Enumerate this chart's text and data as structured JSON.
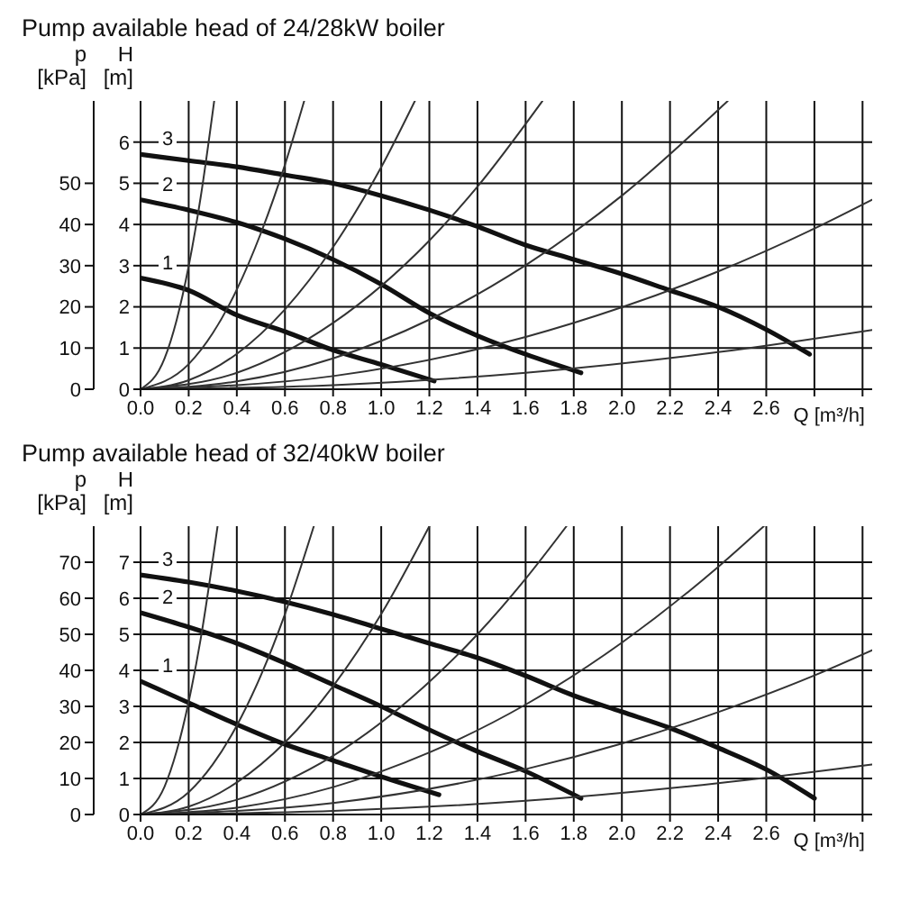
{
  "chart_data": [
    {
      "type": "line",
      "title": "Pump available head of 24/28kW boiler",
      "xlabel": "Q [m³/h]",
      "ylabel": "H [m]",
      "y2label": "p [kPa]",
      "xlim": [
        0,
        3.04
      ],
      "xticks": [
        {
          "value": 0,
          "label": "0.0"
        },
        0.2,
        0.4,
        0.6,
        0.8,
        {
          "value": 1,
          "label": "1.0"
        },
        1.2,
        1.4,
        1.6,
        1.8,
        {
          "value": 2,
          "label": "2.0"
        },
        2.2,
        2.4,
        2.6,
        {
          "value": 2.8,
          "label": null
        },
        {
          "value": 3,
          "label": null
        }
      ],
      "ylim": [
        0,
        7
      ],
      "yticks": [
        0,
        1,
        2,
        3,
        4,
        5,
        6
      ],
      "y2lim": [
        0,
        70
      ],
      "y2ticks": [
        0,
        10,
        20,
        30,
        40,
        50
      ],
      "grid": true,
      "series": [
        {
          "name": "1",
          "color": "#111111",
          "x": [
            0,
            0.2,
            0.4,
            0.6,
            0.8,
            1.0,
            1.22
          ],
          "values": [
            2.7,
            2.4,
            1.8,
            1.4,
            0.95,
            0.6,
            0.2
          ]
        },
        {
          "name": "2",
          "color": "#111111",
          "x": [
            0,
            0.2,
            0.4,
            0.6,
            0.8,
            1.0,
            1.2,
            1.4,
            1.6,
            1.83
          ],
          "values": [
            4.6,
            4.35,
            4.05,
            3.65,
            3.15,
            2.55,
            1.85,
            1.3,
            0.85,
            0.4
          ]
        },
        {
          "name": "3",
          "color": "#111111",
          "x": [
            0,
            0.2,
            0.4,
            0.6,
            0.8,
            1.0,
            1.2,
            1.4,
            1.6,
            1.8,
            2.0,
            2.2,
            2.4,
            2.6,
            2.78
          ],
          "values": [
            5.7,
            5.55,
            5.4,
            5.2,
            5.0,
            4.7,
            4.35,
            3.95,
            3.5,
            3.15,
            2.8,
            2.4,
            2.0,
            1.45,
            0.85
          ]
        },
        {
          "color": "#333333",
          "x": [
            0,
            0.1,
            0.15,
            0.2,
            0.25,
            0.306
          ],
          "values": [
            0,
            0.75,
            1.68,
            2.99,
            4.67,
            7
          ]
        },
        {
          "color": "#333333",
          "x": [
            0,
            0.2,
            0.3,
            0.4,
            0.5,
            0.6,
            0.68
          ],
          "values": [
            0,
            0.61,
            1.36,
            2.42,
            3.79,
            5.45,
            7
          ]
        },
        {
          "color": "#333333",
          "x": [
            0,
            0.2,
            0.4,
            0.6,
            0.8,
            1.0,
            1.14
          ],
          "values": [
            0,
            0.22,
            0.86,
            1.94,
            3.45,
            5.39,
            7
          ]
        },
        {
          "color": "#333333",
          "x": [
            0,
            0.4,
            0.8,
            1.2,
            1.4,
            1.67
          ],
          "values": [
            0,
            0.4,
            1.61,
            3.61,
            4.92,
            7
          ]
        },
        {
          "color": "#333333",
          "x": [
            0,
            0.4,
            0.8,
            1.2,
            1.6,
            2.0,
            2.44
          ],
          "values": [
            0,
            0.19,
            0.75,
            1.69,
            3.01,
            4.7,
            7
          ]
        },
        {
          "color": "#333333",
          "x": [
            0,
            0.8,
            1.6,
            2.0,
            2.4,
            2.8,
            3.04
          ],
          "values": [
            0,
            0.32,
            1.27,
            1.99,
            2.86,
            3.9,
            4.6
          ]
        },
        {
          "color": "#333333",
          "x": [
            0,
            0.8,
            1.6,
            2.4,
            3.04
          ],
          "values": [
            0,
            0.1,
            0.4,
            0.9,
            1.44
          ]
        }
      ]
    },
    {
      "type": "line",
      "title": "Pump available head of 32/40kW boiler",
      "xlabel": "Q [m³/h]",
      "ylabel": "H [m]",
      "y2label": "p [kPa]",
      "xlim": [
        0,
        3.04
      ],
      "xticks": [
        {
          "value": 0,
          "label": "0.0"
        },
        0.2,
        0.4,
        0.6,
        0.8,
        {
          "value": 1,
          "label": "1.0"
        },
        1.2,
        1.4,
        1.6,
        1.8,
        {
          "value": 2,
          "label": "2.0"
        },
        2.2,
        2.4,
        2.6,
        {
          "value": 2.8,
          "label": null
        },
        {
          "value": 3,
          "label": null
        }
      ],
      "ylim": [
        0,
        8
      ],
      "yticks": [
        0,
        1,
        2,
        3,
        4,
        5,
        6,
        7
      ],
      "y2lim": [
        0,
        80
      ],
      "y2ticks": [
        0,
        10,
        20,
        30,
        40,
        50,
        60,
        70
      ],
      "grid": true,
      "series": [
        {
          "name": "1",
          "color": "#111111",
          "x": [
            0,
            0.2,
            0.4,
            0.6,
            0.8,
            1.0,
            1.24
          ],
          "values": [
            3.7,
            3.1,
            2.5,
            1.95,
            1.5,
            1.05,
            0.55
          ]
        },
        {
          "name": "2",
          "color": "#111111",
          "x": [
            0,
            0.2,
            0.4,
            0.6,
            0.8,
            1.0,
            1.2,
            1.4,
            1.6,
            1.83
          ],
          "values": [
            5.6,
            5.2,
            4.75,
            4.2,
            3.6,
            3.0,
            2.35,
            1.75,
            1.2,
            0.45
          ]
        },
        {
          "name": "3",
          "color": "#111111",
          "x": [
            0,
            0.2,
            0.4,
            0.6,
            0.8,
            1.0,
            1.2,
            1.4,
            1.6,
            1.8,
            2.0,
            2.2,
            2.4,
            2.6,
            2.8
          ],
          "values": [
            6.65,
            6.45,
            6.2,
            5.9,
            5.55,
            5.15,
            4.75,
            4.35,
            3.85,
            3.3,
            2.85,
            2.4,
            1.85,
            1.25,
            0.45
          ]
        },
        {
          "color": "#333333",
          "x": [
            0,
            0.1,
            0.15,
            0.2,
            0.25,
            0.32
          ],
          "values": [
            0,
            0.78,
            1.76,
            3.13,
            4.88,
            8
          ]
        },
        {
          "color": "#333333",
          "x": [
            0,
            0.2,
            0.3,
            0.4,
            0.5,
            0.6,
            0.72
          ],
          "values": [
            0,
            0.62,
            1.39,
            2.47,
            3.86,
            5.56,
            8
          ]
        },
        {
          "color": "#333333",
          "x": [
            0,
            0.2,
            0.4,
            0.6,
            0.8,
            1.0,
            1.2
          ],
          "values": [
            0,
            0.22,
            0.89,
            2.0,
            3.56,
            5.56,
            8
          ]
        },
        {
          "color": "#333333",
          "x": [
            0,
            0.4,
            0.8,
            1.2,
            1.4,
            1.6,
            1.77
          ],
          "values": [
            0,
            0.41,
            1.63,
            3.68,
            5.0,
            6.54,
            8
          ]
        },
        {
          "color": "#333333",
          "x": [
            0,
            0.4,
            0.8,
            1.2,
            1.6,
            2.0,
            2.4,
            2.59
          ],
          "values": [
            0,
            0.19,
            0.76,
            1.72,
            3.05,
            4.77,
            6.87,
            8
          ]
        },
        {
          "color": "#333333",
          "x": [
            0,
            0.8,
            1.6,
            2.0,
            2.4,
            2.8,
            3.04
          ],
          "values": [
            0,
            0.32,
            1.26,
            1.97,
            2.84,
            3.86,
            4.56
          ]
        },
        {
          "color": "#333333",
          "x": [
            0,
            0.8,
            1.6,
            2.4,
            3.04
          ],
          "values": [
            0,
            0.1,
            0.38,
            0.87,
            1.39
          ]
        }
      ]
    }
  ]
}
